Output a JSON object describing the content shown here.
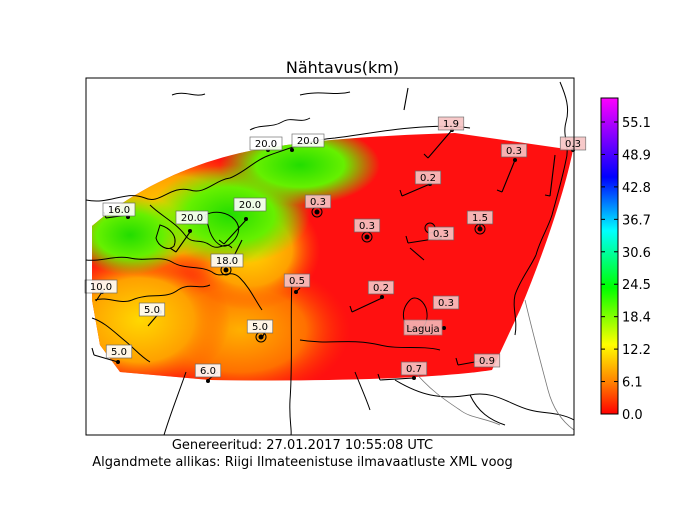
{
  "title": "Nähtavus(km)",
  "footer": {
    "generated": "Genereeritud: 27.01.2017 10:55:08 UTC",
    "source": "Algandmete allikas: Riigi Ilmateenistuse ilmavaatluste XML voog"
  },
  "colorbar": {
    "ticks": [
      "55.1",
      "48.9",
      "42.8",
      "36.7",
      "30.6",
      "24.5",
      "18.4",
      "12.2",
      "6.1",
      "0.0"
    ],
    "colors": [
      "#ff00ff",
      "#0000ff",
      "#00ffff",
      "#00ff00",
      "#ffff00",
      "#ff8000",
      "#ff0000"
    ]
  },
  "stations": [
    {
      "value": "16.0",
      "name": ""
    },
    {
      "value": "20.0",
      "name": ""
    },
    {
      "value": "20.0",
      "name": ""
    },
    {
      "value": "20.0",
      "name": ""
    },
    {
      "value": "20.0",
      "name": ""
    },
    {
      "value": "18.0",
      "name": ""
    },
    {
      "value": "10.0",
      "name": ""
    },
    {
      "value": "5.0",
      "name": ""
    },
    {
      "value": "5.0",
      "name": ""
    },
    {
      "value": "5.0",
      "name": ""
    },
    {
      "value": "6.0",
      "name": ""
    },
    {
      "value": "0.3",
      "name": ""
    },
    {
      "value": "0.3",
      "name": ""
    },
    {
      "value": "0.5",
      "name": ""
    },
    {
      "value": "0.2",
      "name": ""
    },
    {
      "value": "0.2",
      "name": ""
    },
    {
      "value": "0.3",
      "name": ""
    },
    {
      "value": "1.5",
      "name": ""
    },
    {
      "value": "1.9",
      "name": ""
    },
    {
      "value": "0.3",
      "name": ""
    },
    {
      "value": "0.3",
      "name": ""
    },
    {
      "value": "0.3",
      "name": ""
    },
    {
      "value": "0.7",
      "name": ""
    },
    {
      "value": "0.9",
      "name": ""
    }
  ],
  "place_label": "Laguja"
}
